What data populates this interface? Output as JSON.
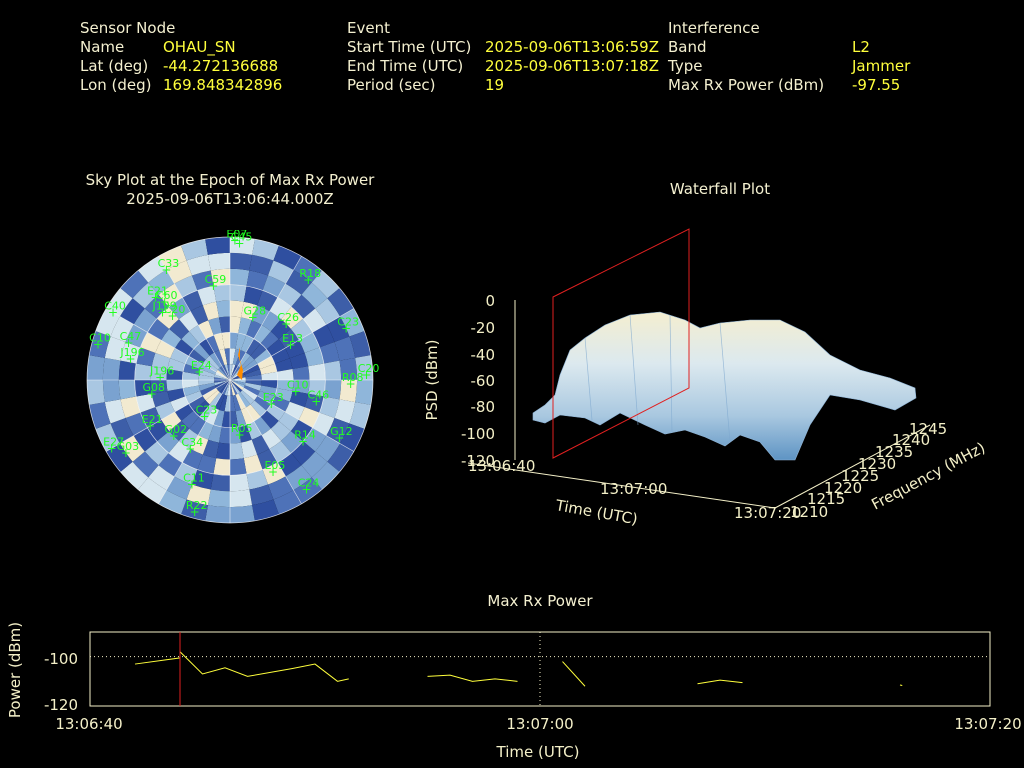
{
  "info": {
    "sensor": {
      "header": "Sensor Node",
      "rows": [
        {
          "label": "Name",
          "value": "OHAU_SN"
        },
        {
          "label": "Lat (deg)",
          "value": "-44.272136688"
        },
        {
          "label": "Lon (deg)",
          "value": "169.848342896"
        }
      ]
    },
    "event": {
      "header": "Event",
      "rows": [
        {
          "label": "Start Time (UTC)",
          "value": "2025-09-06T13:06:59Z"
        },
        {
          "label": "End Time (UTC)",
          "value": "2025-09-06T13:07:18Z"
        },
        {
          "label": "Period (sec)",
          "value": "19"
        }
      ]
    },
    "interference": {
      "header": "Interference",
      "rows": [
        {
          "label": "Band",
          "value": "L2"
        },
        {
          "label": "Type",
          "value": "Jammer"
        },
        {
          "label": "Max Rx Power (dBm)",
          "value": "-97.55"
        }
      ]
    }
  },
  "skyplot": {
    "title_line1": "Sky Plot at the Epoch of Max Rx Power",
    "title_line2": "2025-09-06T13:06:44.000Z",
    "satellites": [
      {
        "id": "E07",
        "az": 2,
        "el": 2
      },
      {
        "id": "C45",
        "az": 4,
        "el": 4
      },
      {
        "id": "R18",
        "az": 38,
        "el": 10
      },
      {
        "id": "C33",
        "az": 330,
        "el": 10
      },
      {
        "id": "E21",
        "az": 318,
        "el": 20
      },
      {
        "id": "C40",
        "az": 300,
        "el": 5
      },
      {
        "id": "C60",
        "az": 320,
        "el": 26
      },
      {
        "id": "C59",
        "az": 350,
        "el": 30
      },
      {
        "id": "J199",
        "az": 315,
        "el": 30
      },
      {
        "id": "C20",
        "az": 318,
        "el": 36
      },
      {
        "id": "C23",
        "az": 66,
        "el": 10
      },
      {
        "id": "G28",
        "az": 20,
        "el": 48
      },
      {
        "id": "C10",
        "az": 285,
        "el": 4
      },
      {
        "id": "J196",
        "az": 282,
        "el": 26
      },
      {
        "id": "C47",
        "az": 290,
        "el": 22
      },
      {
        "id": "C26",
        "az": 45,
        "el": 40
      },
      {
        "id": "E13",
        "az": 60,
        "el": 46
      },
      {
        "id": "C20",
        "az": 88,
        "el": 4
      },
      {
        "id": "R08",
        "az": 92,
        "el": 14
      },
      {
        "id": "J196",
        "az": 272,
        "el": 46
      },
      {
        "id": "G08",
        "az": 260,
        "el": 40
      },
      {
        "id": "E24",
        "az": 285,
        "el": 70
      },
      {
        "id": "E21",
        "az": 240,
        "el": 32
      },
      {
        "id": "G02",
        "az": 225,
        "el": 40
      },
      {
        "id": "C23",
        "az": 215,
        "el": 62
      },
      {
        "id": "R05",
        "az": 170,
        "el": 55
      },
      {
        "id": "G12",
        "az": 118,
        "el": 12
      },
      {
        "id": "R14",
        "az": 130,
        "el": 30
      },
      {
        "id": "C24",
        "az": 145,
        "el": 6
      },
      {
        "id": "E05",
        "az": 155,
        "el": 26
      },
      {
        "id": "C11",
        "az": 200,
        "el": 20
      },
      {
        "id": "R22",
        "az": 195,
        "el": 4
      },
      {
        "id": "E27",
        "az": 240,
        "el": 4
      },
      {
        "id": "G03",
        "az": 235,
        "el": 10
      },
      {
        "id": "C46",
        "az": 104,
        "el": 34
      },
      {
        "id": "C10",
        "az": 100,
        "el": 48
      },
      {
        "id": "E23",
        "az": 120,
        "el": 60
      },
      {
        "id": "C34",
        "az": 210,
        "el": 40
      }
    ]
  },
  "waterfall": {
    "title": "Waterfall Plot",
    "zlabel": "PSD (dBm)",
    "xlabel": "Time (UTC)",
    "ylabel": "Frequency (MHz)",
    "zticks": [
      "0",
      "-20",
      "-40",
      "-60",
      "-80",
      "-100",
      "-120"
    ],
    "xticks": [
      "13:06:40",
      "13:07:00",
      "13:07:20"
    ],
    "yticks": [
      "1210",
      "1215",
      "1220",
      "1225",
      "1230",
      "1235",
      "1240",
      "1245"
    ]
  },
  "chart_data": {
    "type": "line",
    "title": "Max Rx Power",
    "xlabel": "Time (UTC)",
    "ylabel": "Power (dBm)",
    "xticks": [
      "13:06:40",
      "13:07:00",
      "13:07:20"
    ],
    "yticks": [
      "-100",
      "-120"
    ],
    "xlim_sec": [
      0,
      40
    ],
    "ylim": [
      -120,
      -90
    ],
    "grid": true,
    "marker_time": "13:06:44",
    "series": [
      {
        "segments": [
          [
            [
              2,
              -103
            ],
            [
              4,
              -100.5
            ],
            [
              4,
              -98
            ],
            [
              5,
              -107
            ],
            [
              6,
              -104.5
            ],
            [
              7,
              -108
            ],
            [
              9,
              -104.8
            ],
            [
              10,
              -103
            ],
            [
              11,
              -110
            ],
            [
              11.5,
              -109
            ]
          ],
          [
            [
              15,
              -108
            ],
            [
              16,
              -107.5
            ],
            [
              17,
              -110
            ],
            [
              18,
              -109
            ],
            [
              19,
              -110
            ]
          ],
          [
            [
              21,
              -102
            ],
            [
              22,
              -112
            ]
          ],
          [
            [
              27,
              -111
            ],
            [
              28,
              -109.5
            ],
            [
              29,
              -110.5
            ]
          ],
          [
            [
              36,
              -111.5
            ],
            [
              36.1,
              -111.7
            ]
          ]
        ]
      }
    ]
  }
}
